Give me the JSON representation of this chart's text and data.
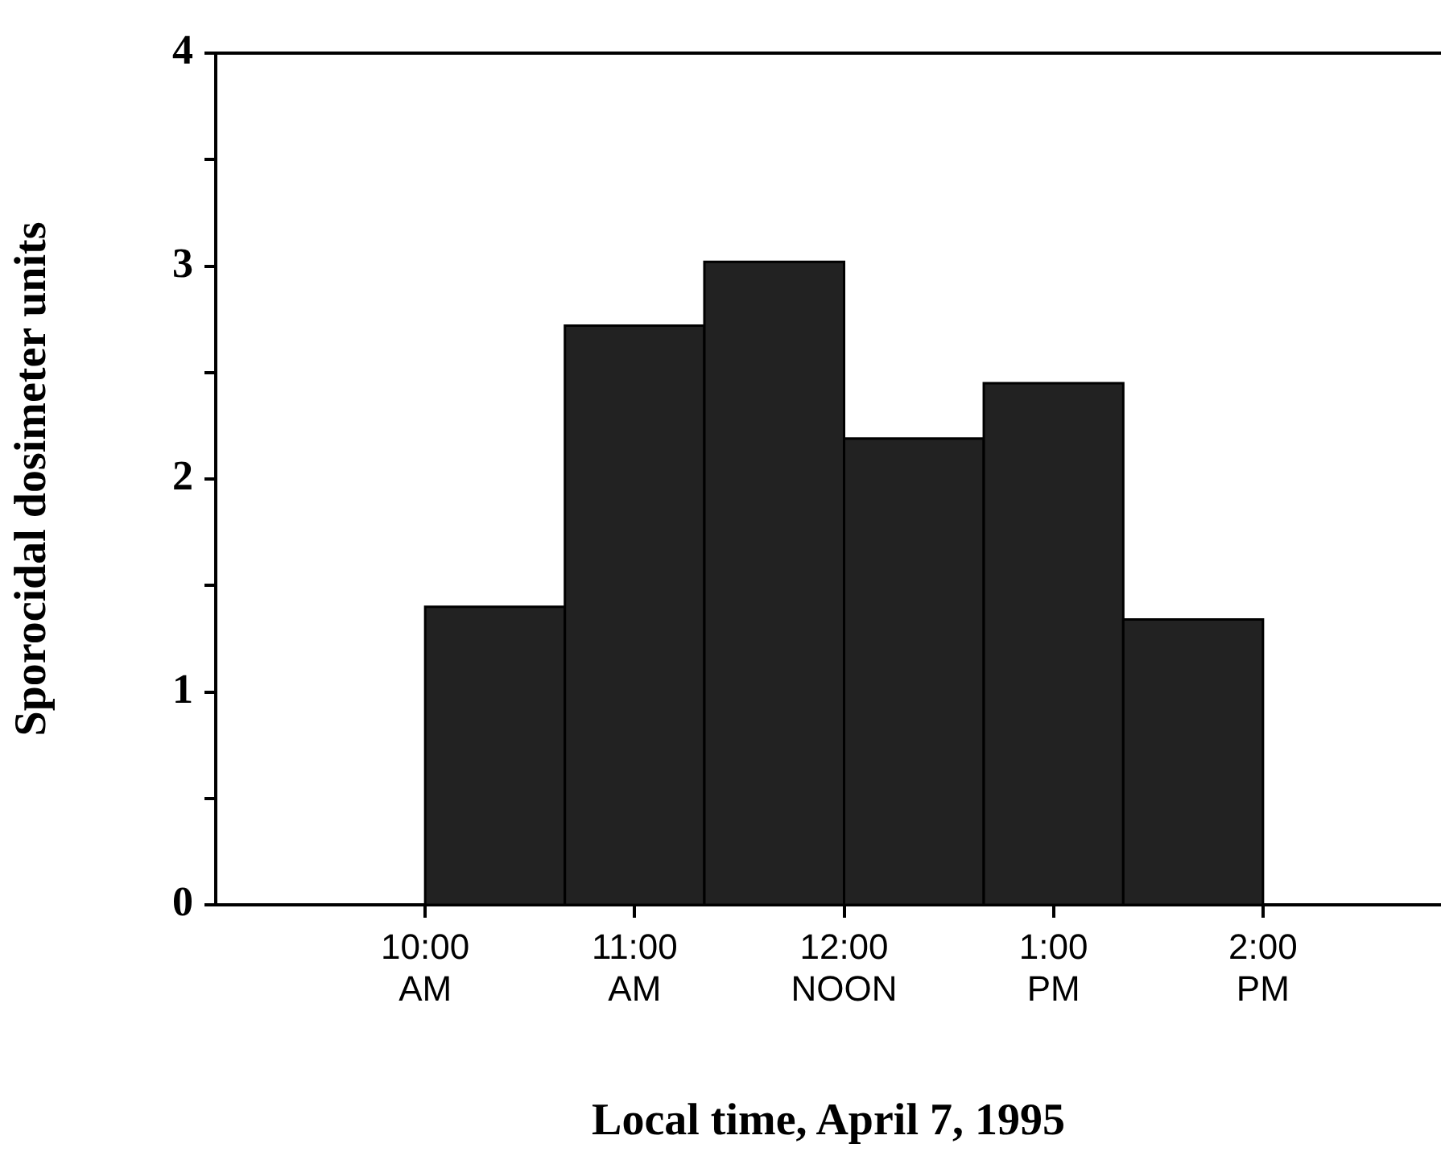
{
  "chart_data": {
    "type": "histogram",
    "xlabel": "Local time, April 7, 1995",
    "ylabel": "Sporocidal dosimeter units",
    "bins": [
      10,
      10.667,
      11.333,
      12,
      12.667,
      13.333,
      14
    ],
    "values": [
      1.4,
      2.72,
      3.02,
      2.19,
      2.45,
      1.34
    ],
    "color": "#222222",
    "xlim": [
      9,
      14.85
    ],
    "xticks": [
      {
        "value": 10,
        "label": "10:00\nAM"
      },
      {
        "value": 11,
        "label": "11:00\nAM"
      },
      {
        "value": 12,
        "label": "12:00\nNOON"
      },
      {
        "value": 13,
        "label": "1:00\nPM"
      },
      {
        "value": 14,
        "label": "2:00\nPM"
      }
    ],
    "ylim": [
      0,
      4
    ],
    "yticks": [
      0,
      {
        "value": 0.5,
        "label": null
      },
      1,
      {
        "value": 1.5,
        "label": null
      },
      2,
      {
        "value": 2.5,
        "label": null
      },
      3,
      {
        "value": 3.5,
        "label": null
      },
      4
    ],
    "grid": false
  }
}
